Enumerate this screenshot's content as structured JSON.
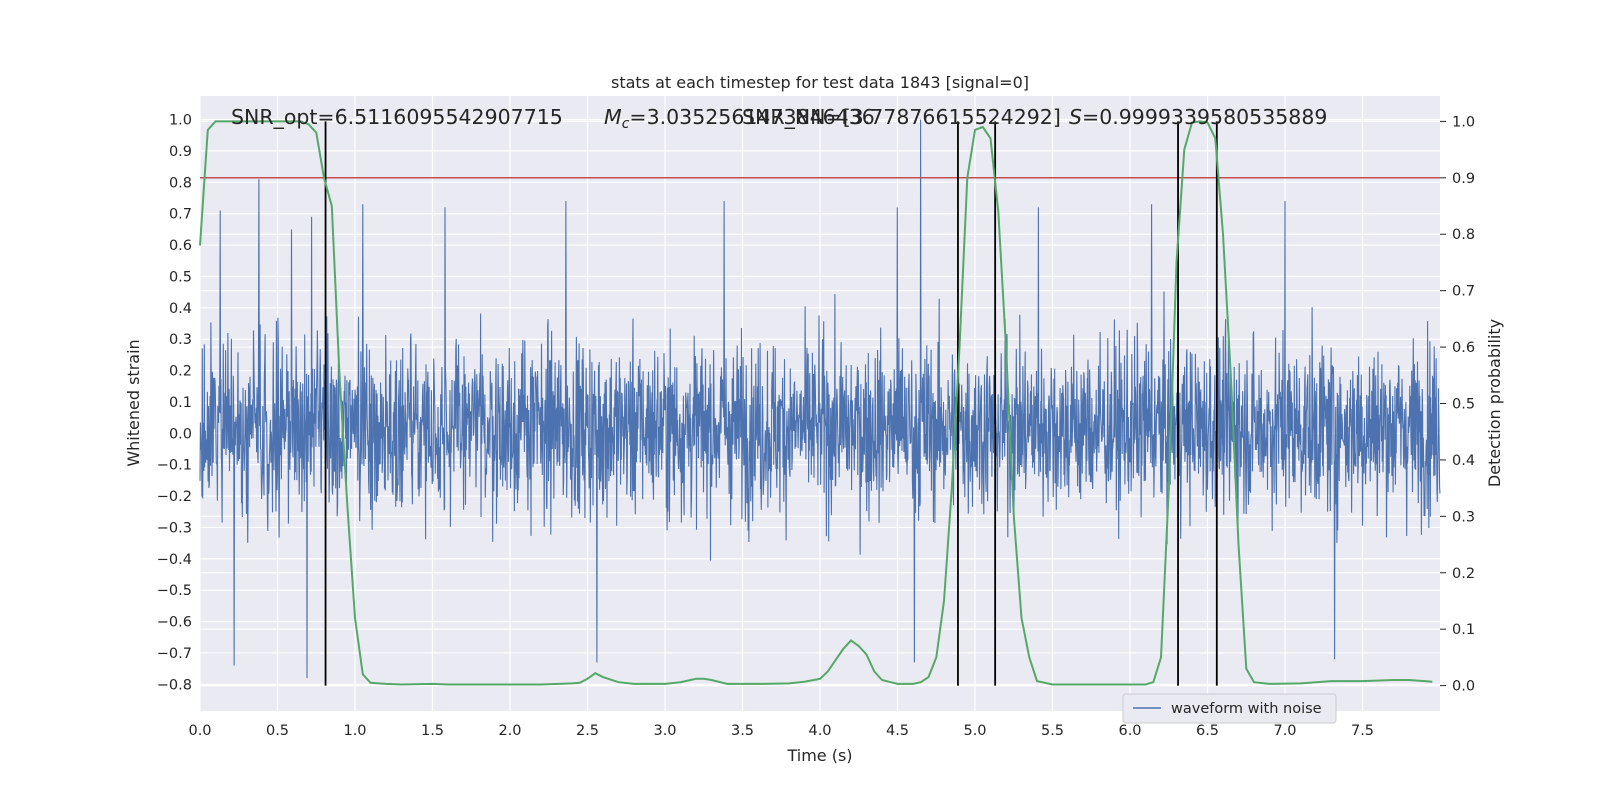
{
  "chart_data": {
    "type": "line",
    "title": "stats at each timestep for test data 1843 [signal=0]",
    "annotations": {
      "snr_opt": "SNR_opt=6.5116095542907715",
      "mc_symbol": "M",
      "mc_subscript": "c",
      "mc_value": "=3.0352561473846436",
      "snr_nn": "SNR_NN=[3.7787661552429​2]",
      "s_symbol": "S",
      "s_value": "=0.9999339580535889"
    },
    "xlabel": "Time (s)",
    "ylabel_left": "Whitened strain",
    "ylabel_right": "Detection probability",
    "xlim": [
      0.0,
      8.0
    ],
    "ylim_left": [
      -0.885,
      1.075
    ],
    "ylim_right": [
      -0.045,
      1.045
    ],
    "x_ticks": [
      "0.0",
      "0.5",
      "1.0",
      "1.5",
      "2.0",
      "2.5",
      "3.0",
      "3.5",
      "4.0",
      "4.5",
      "5.0",
      "5.5",
      "6.0",
      "6.5",
      "7.0",
      "7.5"
    ],
    "y_ticks_left": [
      "1.0",
      "0.9",
      "0.8",
      "0.7",
      "0.6",
      "0.5",
      "0.4",
      "0.3",
      "0.2",
      "0.1",
      "0.0",
      "−0.1",
      "−0.2",
      "−0.3",
      "−0.4",
      "−0.5",
      "−0.6",
      "−0.7",
      "−0.8"
    ],
    "y_ticks_right": [
      "1.0",
      "0.9",
      "0.8",
      "0.7",
      "0.6",
      "0.5",
      "0.4",
      "0.3",
      "0.2",
      "0.1",
      "0.0"
    ],
    "threshold": 0.9,
    "vertical_markers": [
      0.81,
      4.89,
      5.13,
      6.31,
      6.56
    ],
    "series": [
      {
        "name": "waveform with noise",
        "axis": "left",
        "color": "#4c72b0",
        "note": "whitened strain noise, approx. range -0.78 to 1.0",
        "peaks": [
          [
            0.38,
            0.81
          ],
          [
            0.13,
            0.71
          ],
          [
            0.59,
            0.65
          ],
          [
            0.72,
            0.69
          ],
          [
            1.05,
            0.73
          ],
          [
            1.58,
            0.72
          ],
          [
            2.36,
            0.74
          ],
          [
            2.56,
            -0.73
          ],
          [
            3.38,
            0.74
          ],
          [
            4.5,
            0.72
          ],
          [
            4.65,
            1.0
          ],
          [
            4.61,
            -0.73
          ],
          [
            5.41,
            0.72
          ],
          [
            6.14,
            0.73
          ],
          [
            0.22,
            -0.74
          ],
          [
            0.69,
            -0.78
          ],
          [
            7.0,
            0.74
          ],
          [
            7.32,
            -0.72
          ]
        ]
      },
      {
        "name": "Detection probability",
        "axis": "right",
        "color": "#55a868",
        "x": [
          0.0,
          0.05,
          0.1,
          0.2,
          0.3,
          0.4,
          0.5,
          0.6,
          0.65,
          0.7,
          0.75,
          0.8,
          0.85,
          0.9,
          0.95,
          1.0,
          1.05,
          1.1,
          1.2,
          1.3,
          1.5,
          1.6,
          1.8,
          2.0,
          2.2,
          2.4,
          2.45,
          2.5,
          2.55,
          2.6,
          2.7,
          2.8,
          3.0,
          3.1,
          3.2,
          3.25,
          3.3,
          3.4,
          3.6,
          3.8,
          3.9,
          4.0,
          4.05,
          4.1,
          4.15,
          4.2,
          4.25,
          4.3,
          4.35,
          4.4,
          4.5,
          4.6,
          4.65,
          4.7,
          4.75,
          4.8,
          4.85,
          4.9,
          4.95,
          5.0,
          5.05,
          5.1,
          5.15,
          5.2,
          5.25,
          5.3,
          5.35,
          5.4,
          5.5,
          5.7,
          5.9,
          6.1,
          6.15,
          6.2,
          6.25,
          6.3,
          6.35,
          6.4,
          6.45,
          6.5,
          6.55,
          6.6,
          6.65,
          6.7,
          6.75,
          6.8,
          6.9,
          7.1,
          7.3,
          7.5,
          7.7,
          7.8,
          7.9,
          7.95
        ],
        "values": [
          0.78,
          0.985,
          1.0,
          1.0,
          1.0,
          1.0,
          1.0,
          1.0,
          1.0,
          0.995,
          0.98,
          0.9,
          0.85,
          0.55,
          0.32,
          0.12,
          0.02,
          0.005,
          0.003,
          0.002,
          0.003,
          0.002,
          0.002,
          0.002,
          0.002,
          0.004,
          0.005,
          0.012,
          0.022,
          0.015,
          0.006,
          0.003,
          0.003,
          0.006,
          0.012,
          0.012,
          0.01,
          0.003,
          0.003,
          0.004,
          0.007,
          0.012,
          0.025,
          0.045,
          0.065,
          0.08,
          0.07,
          0.055,
          0.025,
          0.01,
          0.003,
          0.003,
          0.006,
          0.015,
          0.05,
          0.15,
          0.35,
          0.6,
          0.9,
          0.985,
          0.99,
          0.97,
          0.84,
          0.6,
          0.3,
          0.12,
          0.05,
          0.008,
          0.002,
          0.002,
          0.002,
          0.002,
          0.006,
          0.05,
          0.35,
          0.75,
          0.95,
          0.998,
          1.0,
          0.998,
          0.97,
          0.8,
          0.55,
          0.25,
          0.03,
          0.006,
          0.003,
          0.004,
          0.008,
          0.008,
          0.01,
          0.01,
          0.008,
          0.007
        ]
      }
    ],
    "legend": {
      "entries": [
        "waveform with noise"
      ],
      "position": "lower-right"
    },
    "grid": true
  }
}
